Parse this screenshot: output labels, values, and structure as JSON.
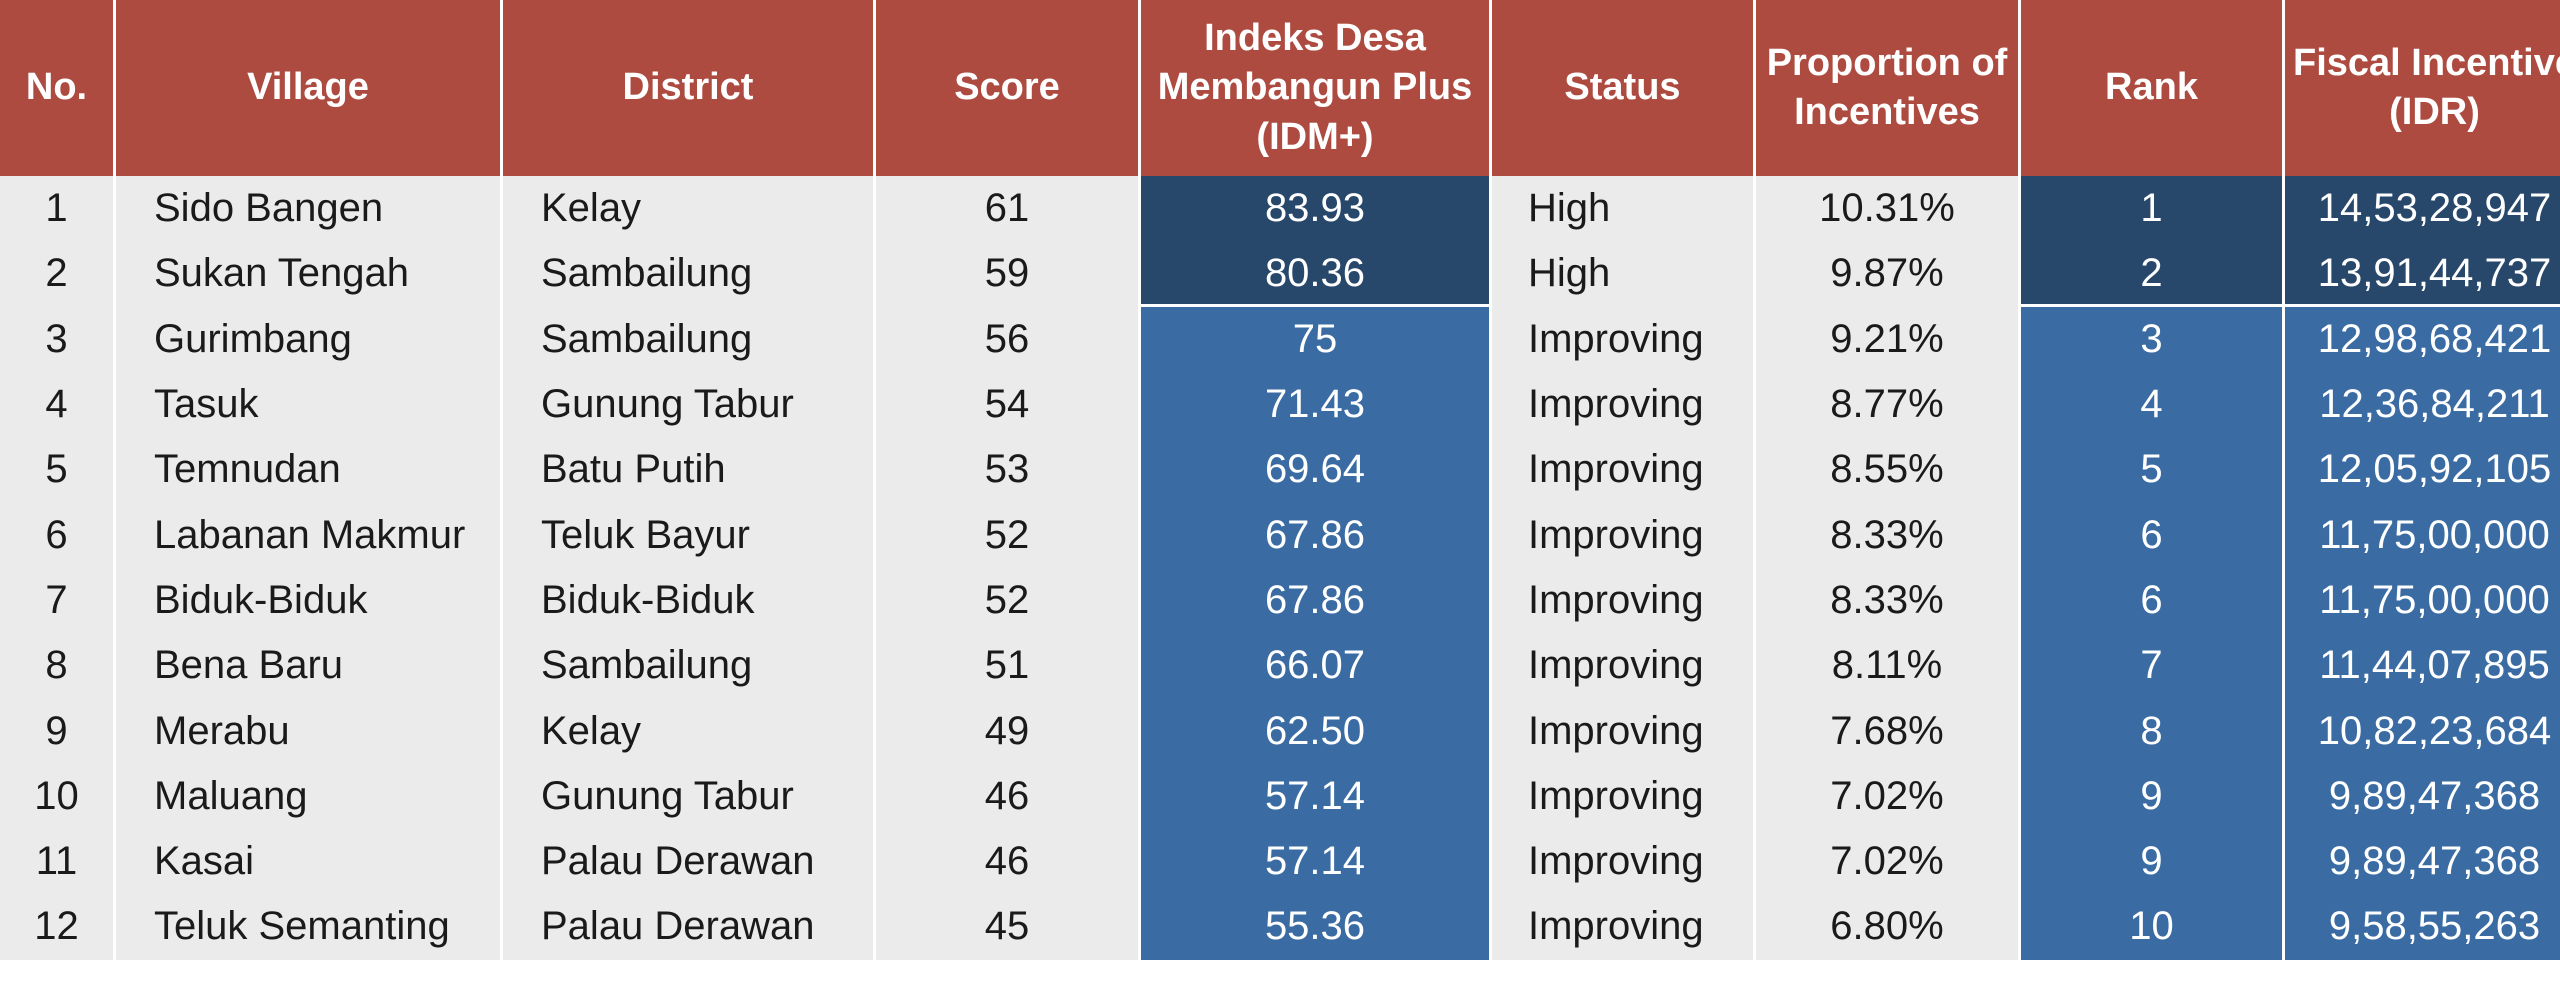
{
  "table": {
    "headers": [
      "No.",
      "Village",
      "District",
      "Score",
      "Indeks Desa Membangun Plus (IDM+)",
      "Status",
      "Proportion of Incentives",
      "Rank",
      "Fiscal Incentive (IDR)"
    ],
    "rows": [
      {
        "no": "1",
        "village": "Sido Bangen",
        "district": "Kelay",
        "score": "61",
        "idm": "83.93",
        "status": "High",
        "proportion": "10.31%",
        "rank": "1",
        "incentive": "14,53,28,947"
      },
      {
        "no": "2",
        "village": "Sukan Tengah",
        "district": "Sambailung",
        "score": "59",
        "idm": "80.36",
        "status": "High",
        "proportion": "9.87%",
        "rank": "2",
        "incentive": "13,91,44,737"
      },
      {
        "no": "3",
        "village": "Gurimbang",
        "district": "Sambailung",
        "score": "56",
        "idm": "75",
        "status": "Improving",
        "proportion": "9.21%",
        "rank": "3",
        "incentive": "12,98,68,421"
      },
      {
        "no": "4",
        "village": "Tasuk",
        "district": "Gunung Tabur",
        "score": "54",
        "idm": "71.43",
        "status": "Improving",
        "proportion": "8.77%",
        "rank": "4",
        "incentive": "12,36,84,211"
      },
      {
        "no": "5",
        "village": "Temnudan",
        "district": "Batu Putih",
        "score": "53",
        "idm": "69.64",
        "status": "Improving",
        "proportion": "8.55%",
        "rank": "5",
        "incentive": "12,05,92,105"
      },
      {
        "no": "6",
        "village": "Labanan Makmur",
        "district": "Teluk Bayur",
        "score": "52",
        "idm": "67.86",
        "status": "Improving",
        "proportion": "8.33%",
        "rank": "6",
        "incentive": "11,75,00,000"
      },
      {
        "no": "7",
        "village": "Biduk-Biduk",
        "district": "Biduk-Biduk",
        "score": "52",
        "idm": "67.86",
        "status": "Improving",
        "proportion": "8.33%",
        "rank": "6",
        "incentive": "11,75,00,000"
      },
      {
        "no": "8",
        "village": "Bena Baru",
        "district": "Sambailung",
        "score": "51",
        "idm": "66.07",
        "status": "Improving",
        "proportion": "8.11%",
        "rank": "7",
        "incentive": "11,44,07,895"
      },
      {
        "no": "9",
        "village": "Merabu",
        "district": "Kelay",
        "score": "49",
        "idm": "62.50",
        "status": "Improving",
        "proportion": "7.68%",
        "rank": "8",
        "incentive": "10,82,23,684"
      },
      {
        "no": "10",
        "village": "Maluang",
        "district": "Gunung Tabur",
        "score": "46",
        "idm": "57.14",
        "status": "Improving",
        "proportion": "7.02%",
        "rank": "9",
        "incentive": "9,89,47,368"
      },
      {
        "no": "11",
        "village": "Kasai",
        "district": "Palau Derawan",
        "score": "46",
        "idm": "57.14",
        "status": "Improving",
        "proportion": "7.02%",
        "rank": "9",
        "incentive": "9,89,47,368"
      },
      {
        "no": "12",
        "village": "Teluk Semanting",
        "district": "Palau Derawan",
        "score": "45",
        "idm": "55.36",
        "status": "Improving",
        "proportion": "6.80%",
        "rank": "10",
        "incentive": "9,58,55,263"
      }
    ]
  },
  "colors": {
    "header_bg": "#ad4b41",
    "row_bg": "#ebebeb",
    "high_bg": "#27476b",
    "improving_bg": "#3a6ca3"
  }
}
